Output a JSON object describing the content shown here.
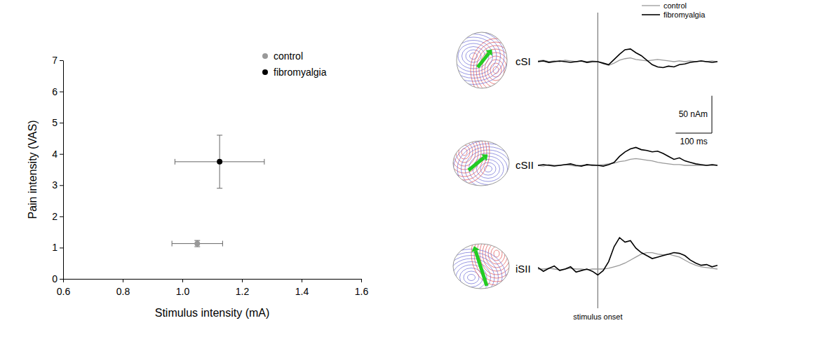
{
  "chart_data": [
    {
      "type": "scatter",
      "xlabel": "Stimulus intensity (mA)",
      "ylabel": "Pain intensity (VAS)",
      "xlim": [
        0.6,
        1.6
      ],
      "xticks": [
        0.6,
        0.8,
        {
          "value": 1,
          "label": "1.0"
        },
        1.2,
        1.4,
        1.6
      ],
      "ylim": [
        0,
        7
      ],
      "yticks": [
        0,
        1,
        2,
        3,
        4,
        5,
        6,
        7
      ],
      "legend": "top right",
      "marker": "circle",
      "series": [
        {
          "name": "control",
          "color": "#999999",
          "x": [
            1.05
          ],
          "values": [
            1.13
          ],
          "x_error": [
            0.085
          ],
          "y_error": [
            0.1
          ]
        },
        {
          "name": "fibromyalgia",
          "color": "#000000",
          "x": [
            1.125
          ],
          "values": [
            3.75
          ],
          "x_error": [
            0.15
          ],
          "y_error": [
            0.85
          ]
        }
      ]
    },
    {
      "type": "line",
      "tick_labels": false,
      "legend": "top right",
      "x": [
        -165,
        -150,
        -135,
        -120,
        -105,
        -90,
        -75,
        -60,
        -45,
        -30,
        -15,
        0,
        15,
        30,
        45,
        60,
        75,
        90,
        105,
        120,
        135,
        150,
        165,
        180,
        195,
        210,
        225,
        240,
        255,
        270,
        285,
        300,
        315,
        330
      ],
      "xlim": [
        -165,
        330
      ],
      "ylim": [
        -30,
        60
      ],
      "annotation": {
        "x": 0,
        "text": "stimulus onset"
      },
      "scale_bar": {
        "x": 100,
        "x_label": "100 ms",
        "y": 50,
        "y_label": "50 nAm"
      },
      "series": [
        {
          "name": "control",
          "color": "#999999"
        },
        {
          "name": "fibromyalgia",
          "color": "#000000"
        }
      ],
      "panels": [
        {
          "title": "cSI",
          "series": [
            {
              "values": [
                1,
                2,
                0,
                1,
                0,
                2,
                1,
                0,
                1,
                0,
                1,
                0,
                -3,
                -5,
                -2,
                2,
                4,
                5,
                3,
                2,
                1,
                2,
                3,
                2,
                1,
                0,
                1,
                0,
                1,
                0,
                1,
                0,
                1,
                0
              ]
            },
            {
              "values": [
                0,
                1,
                -1,
                0,
                1,
                0,
                -1,
                0,
                1,
                -1,
                0,
                0,
                -2,
                -4,
                3,
                10,
                16,
                17,
                12,
                8,
                2,
                -4,
                -7,
                -8,
                -6,
                -7,
                -4,
                -3,
                -1,
                0,
                1,
                0,
                -1,
                0
              ]
            }
          ]
        },
        {
          "title": "cSII",
          "series": [
            {
              "values": [
                0,
                -1,
                1,
                0,
                0,
                1,
                0,
                -1,
                0,
                0,
                1,
                0,
                1,
                2,
                3,
                5,
                6,
                8,
                9,
                8,
                7,
                6,
                4,
                3,
                2,
                1,
                1,
                0,
                0,
                0,
                0,
                0,
                0,
                0
              ]
            },
            {
              "values": [
                0,
                1,
                0,
                -1,
                0,
                1,
                2,
                0,
                -1,
                1,
                0,
                0,
                -1,
                1,
                4,
                12,
                18,
                22,
                24,
                21,
                20,
                18,
                19,
                16,
                12,
                8,
                10,
                6,
                4,
                2,
                1,
                0,
                1,
                0
              ]
            }
          ]
        },
        {
          "title": "iSII",
          "series": [
            {
              "values": [
                0,
                0,
                1,
                0,
                -1,
                0,
                1,
                0,
                0,
                -1,
                0,
                0,
                0,
                1,
                3,
                5,
                8,
                12,
                16,
                20,
                22,
                22,
                20,
                19,
                20,
                18,
                16,
                12,
                8,
                5,
                3,
                2,
                1,
                0
              ]
            },
            {
              "values": [
                2,
                -3,
                1,
                4,
                -2,
                0,
                3,
                -4,
                -2,
                0,
                -3,
                -8,
                -2,
                10,
                30,
                42,
                36,
                38,
                28,
                22,
                18,
                14,
                16,
                18,
                20,
                22,
                21,
                18,
                12,
                8,
                5,
                6,
                3,
                5
              ]
            }
          ]
        }
      ]
    }
  ]
}
